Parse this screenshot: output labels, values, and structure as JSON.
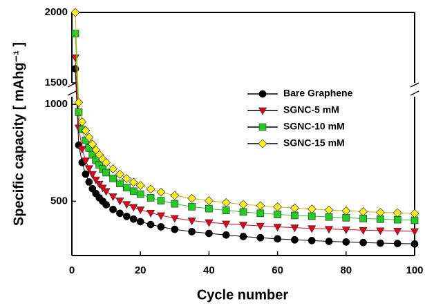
{
  "chart_data": {
    "type": "line",
    "x_label": "Cycle number",
    "y_label": "Specific capacity [ mAhg⁻¹ ]",
    "x": [
      1,
      2,
      3,
      4,
      5,
      6,
      7,
      8,
      9,
      10,
      12,
      14,
      16,
      18,
      20,
      23,
      26,
      30,
      35,
      40,
      45,
      50,
      55,
      60,
      65,
      70,
      75,
      80,
      85,
      90,
      95,
      100
    ],
    "series": [
      {
        "name": "Bare Graphene",
        "color": "#000000",
        "marker": "circle",
        "values": [
          1600,
          790,
          700,
          640,
          600,
          565,
          540,
          518,
          500,
          482,
          458,
          438,
          422,
          408,
          395,
          380,
          368,
          355,
          343,
          334,
          326,
          318,
          312,
          306,
          301,
          297,
          293,
          290,
          287,
          284,
          282,
          280
        ]
      },
      {
        "name": "SGNC-5 mM",
        "color": "#e0001b",
        "marker": "triangle-down",
        "values": [
          1680,
          880,
          770,
          710,
          670,
          640,
          612,
          590,
          570,
          552,
          525,
          503,
          485,
          470,
          457,
          440,
          427,
          413,
          400,
          391,
          384,
          378,
          373,
          368,
          364,
          360,
          357,
          354,
          351,
          349,
          347,
          345
        ]
      },
      {
        "name": "SGNC-10 mM",
        "color": "#22cc22",
        "marker": "square",
        "values": [
          1850,
          960,
          870,
          815,
          775,
          740,
          712,
          688,
          667,
          648,
          618,
          592,
          570,
          552,
          537,
          518,
          503,
          487,
          472,
          462,
          453,
          445,
          438,
          432,
          427,
          423,
          419,
          415,
          411,
          408,
          405,
          402
        ]
      },
      {
        "name": "SGNC-15 mM",
        "color": "#ffee22",
        "marker": "diamond",
        "values": [
          2000,
          1010,
          910,
          865,
          830,
          795,
          765,
          740,
          718,
          700,
          668,
          640,
          617,
          598,
          582,
          563,
          547,
          530,
          515,
          503,
          493,
          484,
          477,
          471,
          465,
          460,
          455,
          451,
          447,
          443,
          440,
          437
        ]
      }
    ],
    "xlim": [
      0,
      100
    ],
    "xticks": [
      0,
      20,
      40,
      60,
      80,
      100
    ],
    "ylim": [
      220,
      2000
    ],
    "y_break": [
      1040,
      1500
    ],
    "yticks": [
      500,
      1000,
      1500,
      2000
    ],
    "legend": "upper right"
  }
}
